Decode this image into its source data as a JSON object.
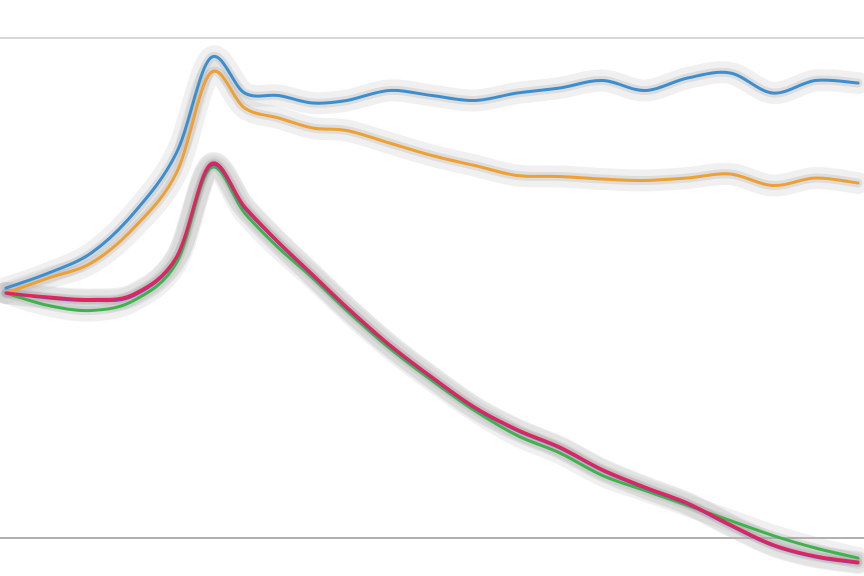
{
  "chart_data": {
    "type": "line",
    "title": "",
    "xlabel": "",
    "ylabel": "",
    "xlim": [
      0,
      100
    ],
    "ylim": [
      0,
      100
    ],
    "grid": false,
    "legend": "none",
    "x": [
      0,
      5,
      10,
      15,
      20,
      24,
      28,
      32,
      36,
      40,
      45,
      50,
      55,
      60,
      65,
      70,
      75,
      80,
      85,
      90,
      95,
      100
    ],
    "series": [
      {
        "color": "#3b8fd1",
        "values": [
          50,
          53,
          57,
          65,
          77,
          96,
          89,
          88.5,
          87,
          87.5,
          89.5,
          88.5,
          87.5,
          89,
          90,
          91.5,
          89.5,
          92,
          93,
          89,
          91.5,
          91
        ]
      },
      {
        "color": "#f0a030",
        "values": [
          49,
          52,
          55,
          62,
          73,
          93,
          86,
          84,
          82,
          81.5,
          79,
          76.5,
          74.5,
          72.5,
          72.3,
          71.8,
          71.5,
          72,
          72.8,
          70.5,
          72,
          71
        ]
      },
      {
        "color": "#3cb44b",
        "values": [
          49,
          46.5,
          45.5,
          47.5,
          55,
          74,
          65,
          58,
          52,
          45.5,
          38,
          31.5,
          25.5,
          20.5,
          17,
          12.5,
          9.5,
          6.5,
          3.5,
          0.5,
          -2,
          -4
        ]
      },
      {
        "color": "#9b3aa0",
        "values": [
          49,
          48,
          47.5,
          48.5,
          56,
          74.5,
          66,
          59,
          52.5,
          46,
          38.5,
          32,
          26,
          21.5,
          18,
          13.5,
          10,
          6.8,
          2.5,
          -1.5,
          -3.8,
          -5
        ]
      },
      {
        "color": "#e0245e",
        "values": [
          49,
          48.2,
          47.7,
          48.8,
          56.2,
          74.8,
          66.3,
          59.2,
          52.7,
          46.2,
          38.7,
          32.2,
          26.2,
          21.7,
          18.2,
          13.7,
          10.2,
          7,
          2.7,
          -1.3,
          -3.6,
          -4.8
        ]
      }
    ]
  }
}
